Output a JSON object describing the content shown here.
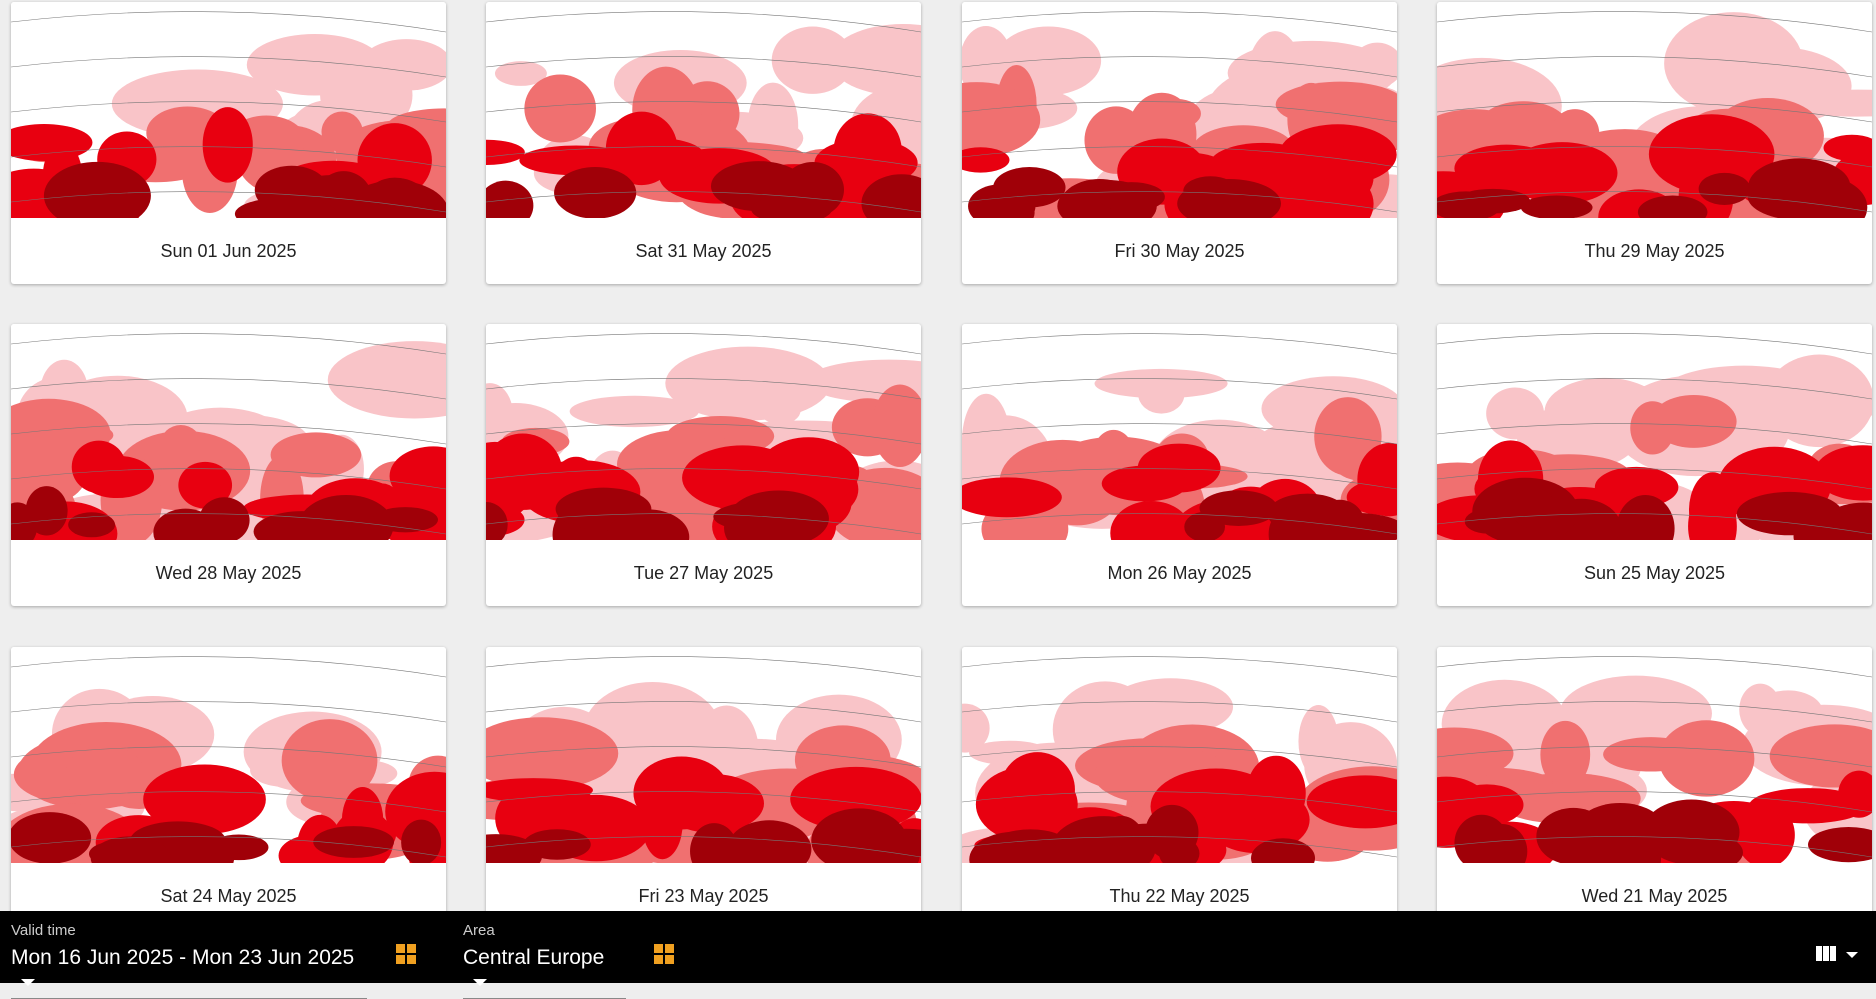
{
  "cards": [
    {
      "label": "Sun 01 Jun 2025"
    },
    {
      "label": "Sat 31 May 2025"
    },
    {
      "label": "Fri 30 May 2025"
    },
    {
      "label": "Thu 29 May 2025"
    },
    {
      "label": "Wed 28 May 2025"
    },
    {
      "label": "Tue 27 May 2025"
    },
    {
      "label": "Mon 26 May 2025"
    },
    {
      "label": "Sun 25 May 2025"
    },
    {
      "label": "Sat 24 May 2025"
    },
    {
      "label": "Fri 23 May 2025"
    },
    {
      "label": "Thu 22 May 2025"
    },
    {
      "label": "Wed 21 May 2025"
    }
  ],
  "toolbar": {
    "valid_time": {
      "label": "Valid time",
      "value": "Mon 16 Jun 2025 - Mon 23 Jun 2025"
    },
    "area": {
      "label": "Area",
      "value": "Central Europe"
    }
  }
}
